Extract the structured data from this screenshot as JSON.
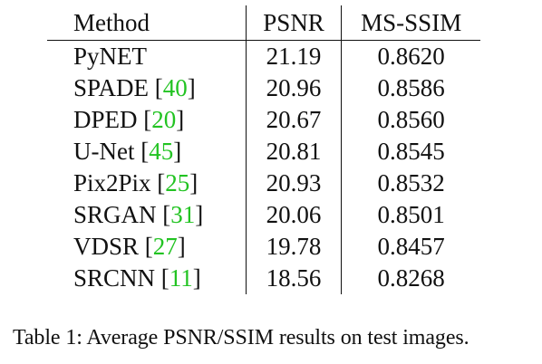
{
  "table": {
    "headers": [
      "Method",
      "PSNR",
      "MS-SSIM"
    ],
    "rows": [
      {
        "method": "PyNET",
        "ref": "",
        "psnr": "21.19",
        "ssim": "0.8620"
      },
      {
        "method": "SPADE",
        "ref": "40",
        "psnr": "20.96",
        "ssim": "0.8586"
      },
      {
        "method": "DPED",
        "ref": "20",
        "psnr": "20.67",
        "ssim": "0.8560"
      },
      {
        "method": "U-Net",
        "ref": "45",
        "psnr": "20.81",
        "ssim": "0.8545"
      },
      {
        "method": "Pix2Pix",
        "ref": "25",
        "psnr": "20.93",
        "ssim": "0.8532"
      },
      {
        "method": "SRGAN",
        "ref": "31",
        "psnr": "20.06",
        "ssim": "0.8501"
      },
      {
        "method": "VDSR",
        "ref": "27",
        "psnr": "19.78",
        "ssim": "0.8457"
      },
      {
        "method": "SRCNN",
        "ref": "11",
        "psnr": "18.56",
        "ssim": "0.8268"
      }
    ]
  },
  "caption": {
    "label": "Table 1:",
    "text": "Average PSNR/SSIM results on test images."
  },
  "colors": {
    "citation": "#22c322",
    "text": "#111111"
  }
}
